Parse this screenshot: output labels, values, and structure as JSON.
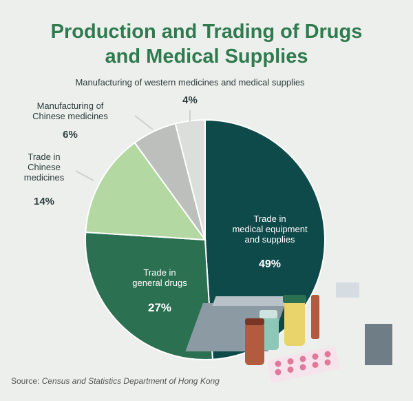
{
  "title_line1": "Production and Trading of Drugs",
  "title_line2": "and Medical Supplies",
  "source_prefix": "Source: ",
  "source_name": "Census and Statistics Department of Hong Kong",
  "chart_data": {
    "type": "pie",
    "title": "Production and Trading of Drugs and Medical Supplies",
    "slices": [
      {
        "label": "Trade in medical equipment and supplies",
        "value": 49,
        "value_label": "49%",
        "color": "#0f4a4a"
      },
      {
        "label": "Trade in general drugs",
        "value": 27,
        "value_label": "27%",
        "color": "#2c7052"
      },
      {
        "label": "Trade in Chinese medicines",
        "value": 14,
        "value_label": "14%",
        "color": "#b4d8a2"
      },
      {
        "label": "Manufacturing of Chinese medicines",
        "value": 6,
        "value_label": "6%",
        "color": "#bcbfbc"
      },
      {
        "label": "Manufacturing of western medicines and medical supplies",
        "value": 4,
        "value_label": "4%",
        "color": "#dcdedc"
      }
    ],
    "direction": "clockwise from top"
  }
}
